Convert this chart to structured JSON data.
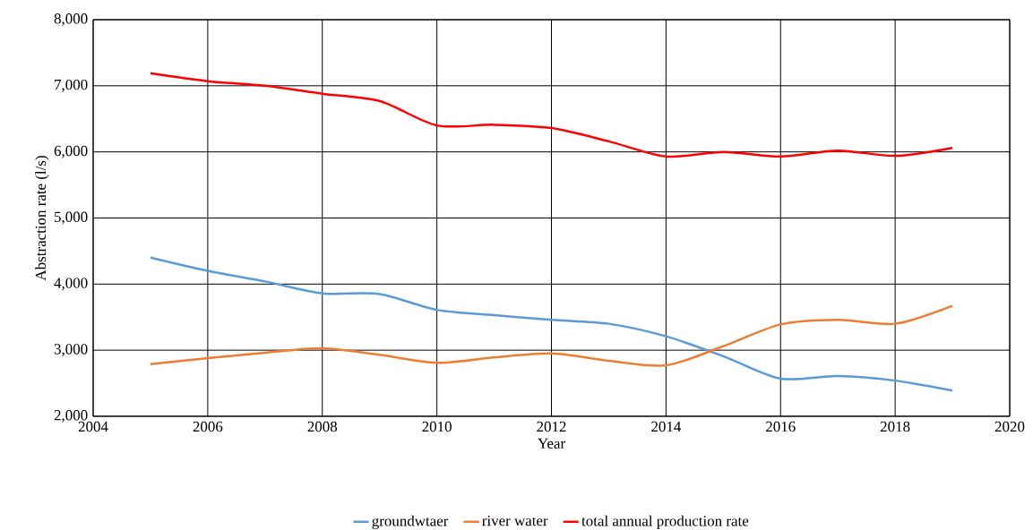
{
  "chart_data": {
    "type": "line",
    "xlabel": "Year",
    "ylabel": "Abstraction rate (l/s)",
    "x": [
      2005,
      2006,
      2007,
      2008,
      2009,
      2010,
      2011,
      2012,
      2013,
      2014,
      2015,
      2016,
      2017,
      2018,
      2019
    ],
    "series": [
      {
        "name": "groundwtaer",
        "color": "#5b9bd5",
        "values": [
          4400,
          4200,
          4040,
          3860,
          3850,
          3610,
          3530,
          3460,
          3400,
          3210,
          2910,
          2570,
          2610,
          2540,
          2390
        ]
      },
      {
        "name": "river water",
        "color": "#ed7d31",
        "values": [
          2790,
          2880,
          2960,
          3030,
          2930,
          2810,
          2890,
          2950,
          2840,
          2770,
          3060,
          3390,
          3460,
          3400,
          3670
        ]
      },
      {
        "name": "total annual production rate",
        "color": "#ff0000",
        "values": [
          7190,
          7070,
          7000,
          6880,
          6770,
          6400,
          6410,
          6360,
          6160,
          5930,
          6000,
          5930,
          6020,
          5940,
          6060
        ]
      }
    ],
    "xlim": [
      2004,
      2020
    ],
    "xticks": [
      2004,
      2006,
      2008,
      2010,
      2012,
      2014,
      2016,
      2018,
      2020
    ],
    "ylim": [
      2000,
      8000
    ],
    "yticks": [
      {
        "value": 2000,
        "label": "2,000"
      },
      {
        "value": 3000,
        "label": "3,000"
      },
      {
        "value": 4000,
        "label": "4,000"
      },
      {
        "value": 5000,
        "label": "5,000"
      },
      {
        "value": 6000,
        "label": "6,000"
      },
      {
        "value": 7000,
        "label": "7,000"
      },
      {
        "value": 8000,
        "label": "8,000"
      }
    ],
    "grid": true,
    "legend": "bottom",
    "marker": "none",
    "line_style": "solid"
  }
}
